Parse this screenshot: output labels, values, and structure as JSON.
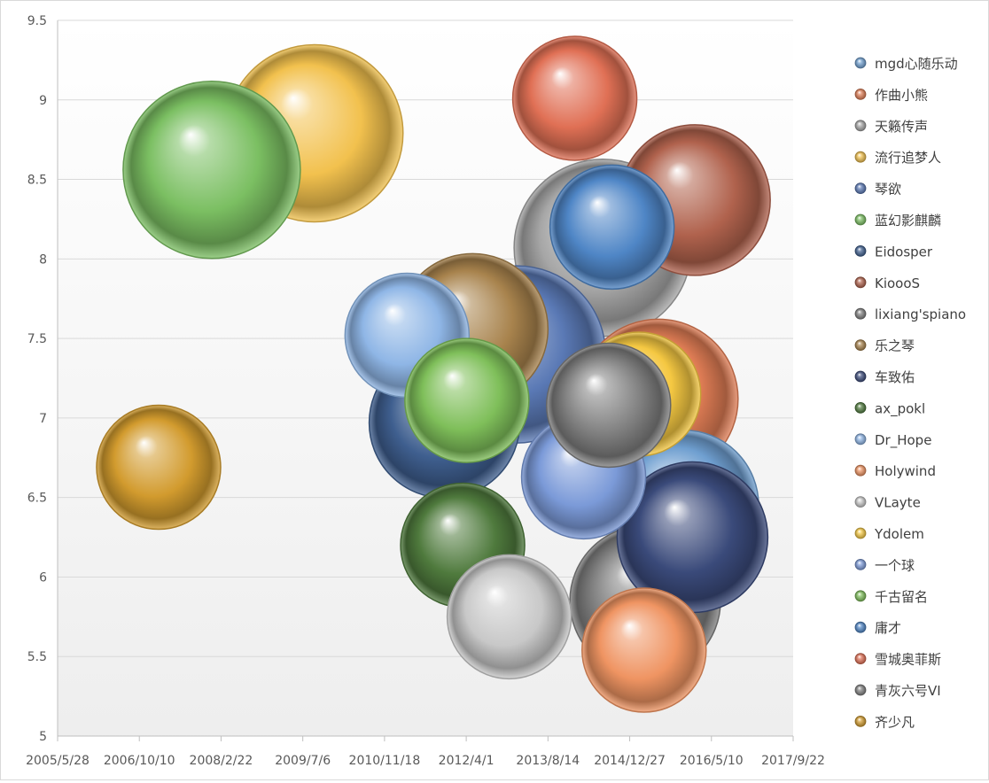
{
  "chart_data": {
    "type": "bubble",
    "x_axis": {
      "type": "date",
      "min": "2005-05-28",
      "max": "2017-09-22",
      "ticks": [
        "2005-05-28",
        "2006-10-10",
        "2008-02-22",
        "2009-07-06",
        "2010-11-18",
        "2012-04-01",
        "2013-08-14",
        "2014-12-27",
        "2016-05-10",
        "2017-09-22"
      ],
      "tick_labels": [
        "2005/5/28",
        "2006/10/10",
        "2008/2/22",
        "2009/7/6",
        "2010/11/18",
        "2012/4/1",
        "2013/8/14",
        "2014/12/27",
        "2016/5/10",
        "2017/9/22"
      ]
    },
    "y_axis": {
      "min": 5,
      "max": 9.5,
      "ticks": [
        5,
        5.5,
        6,
        6.5,
        7,
        7.5,
        8,
        8.5,
        9,
        9.5
      ],
      "tick_labels": [
        "5",
        "5.5",
        "6",
        "6.5",
        "7",
        "7.5",
        "8",
        "8.5",
        "9",
        "9.5"
      ]
    },
    "grid": true,
    "legend_position": "right",
    "series": [
      {
        "name": "mgd心随乐动",
        "x": "2015-11-20",
        "y": 6.45,
        "size": 17,
        "color": "#6f9fd0"
      },
      {
        "name": "作曲小熊",
        "x": "2015-06-20",
        "y": 7.12,
        "size": 18,
        "color": "#e07d55"
      },
      {
        "name": "天籁传声",
        "x": "2014-07-15",
        "y": 8.07,
        "size": 20,
        "color": "#a6a6a6"
      },
      {
        "name": "流行追梦人",
        "x": "2009-09-15",
        "y": 8.79,
        "size": 20,
        "color": "#f2c14e"
      },
      {
        "name": "琴欲",
        "x": "2013-02-05",
        "y": 7.4,
        "size": 20,
        "color": "#5a79b5"
      },
      {
        "name": "蓝幻影麒麟",
        "x": "2007-12-27",
        "y": 8.56,
        "size": 20,
        "color": "#7bbf62"
      },
      {
        "name": "Eidosper",
        "x": "2011-11-20",
        "y": 6.97,
        "size": 17,
        "color": "#3f5f8f"
      },
      {
        "name": "KioooS",
        "x": "2016-01-30",
        "y": 8.37,
        "size": 17,
        "color": "#b0624d"
      },
      {
        "name": "lixiang'spiano",
        "x": "2015-04-01",
        "y": 5.85,
        "size": 17,
        "color": "#7f7f7f"
      },
      {
        "name": "乐之琴",
        "x": "2012-05-10",
        "y": 7.56,
        "size": 17,
        "color": "#a8834d"
      },
      {
        "name": "车致佑",
        "x": "2016-01-15",
        "y": 6.25,
        "size": 17,
        "color": "#3a4a7a"
      },
      {
        "name": "ax_pokl",
        "x": "2012-03-10",
        "y": 6.2,
        "size": 14,
        "color": "#4f7a3d"
      },
      {
        "name": "Dr_Hope",
        "x": "2011-04-05",
        "y": 7.52,
        "size": 14,
        "color": "#8fb6e6"
      },
      {
        "name": "Holywind",
        "x": "2015-03-25",
        "y": 5.54,
        "size": 14,
        "color": "#ef9462"
      },
      {
        "name": "VLayte",
        "x": "2012-12-20",
        "y": 5.75,
        "size": 14,
        "color": "#c8c8c8"
      },
      {
        "name": "Ydolem",
        "x": "2015-02-20",
        "y": 7.15,
        "size": 14,
        "color": "#f5c842"
      },
      {
        "name": "一个球",
        "x": "2014-03-20",
        "y": 6.63,
        "size": 14,
        "color": "#7b9ad8"
      },
      {
        "name": "千古留名",
        "x": "2012-04-05",
        "y": 7.11,
        "size": 14,
        "color": "#7fbf5a"
      },
      {
        "name": "庸才",
        "x": "2014-09-10",
        "y": 8.2,
        "size": 14,
        "color": "#4f86c6"
      },
      {
        "name": "雪城奥菲斯",
        "x": "2014-01-25",
        "y": 9.01,
        "size": 14,
        "color": "#e07055"
      },
      {
        "name": "青灰六号VI",
        "x": "2014-08-20",
        "y": 7.08,
        "size": 14,
        "color": "#7f7f7f"
      },
      {
        "name": "齐少凡",
        "x": "2007-02-05",
        "y": 6.69,
        "size": 14,
        "color": "#d29b2e"
      }
    ]
  }
}
